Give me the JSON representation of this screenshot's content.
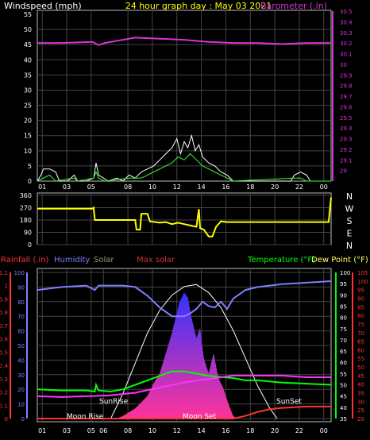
{
  "header": {
    "left_label": "Windspeed (mph)",
    "center_label": "24 hour graph day : May 03 2021",
    "right_label": "Barometer (.in)"
  },
  "bottom_header": {
    "rainfall_label": "Rainfall (.in)",
    "humidity_label": "Humidity",
    "solar_label": "Solar",
    "max_solar_label": "Max solar",
    "temperature_label": "Temperature (°F)",
    "dewpoint_label": "Dew Point (°F)"
  },
  "annotations": {
    "moon_rise": "Moon Rise",
    "moon_set": "Moon Set",
    "sun_rise": "SunRise",
    "sun_set": "SunSet"
  },
  "colors": {
    "barometer": "#d633d6",
    "wind_gust": "#ffffff",
    "wind_speed": "#33ff33",
    "direction": "#ffff00",
    "humidity": "#7f7fff",
    "solar_fill_top": "#3333ff",
    "solar_fill_bottom": "#ff3399",
    "max_solar": "#ffffff",
    "temperature": "#00ff00",
    "dewpoint": "#ff33ff",
    "rain": "#ff3333",
    "temp_axis": "#00ff00",
    "dew_axis": "#ff3333",
    "rain_axis": "#ff3333",
    "hum_axis": "#7f7fff",
    "grid": "#444444",
    "label_yellow": "#ffff00"
  },
  "chart_data": [
    {
      "type": "line",
      "name": "wind_barometer",
      "x_ticks": [
        "01",
        "03",
        "05",
        "08",
        "10",
        "12",
        "14",
        "16",
        "18",
        "20",
        "22",
        "00"
      ],
      "left_ticks": [
        "55",
        "50",
        "45",
        "40",
        "35",
        "30",
        "25",
        "20",
        "15",
        "10",
        "5",
        "0"
      ],
      "ylim_left": [
        0,
        55
      ],
      "right_ticks": [
        "30.5",
        "30.4",
        "30.3",
        "30.2",
        "30.1",
        "30",
        "29.9",
        "29.8",
        "29.7",
        "29.6",
        "29.5",
        "29.4",
        "29.3",
        "29.2",
        "29.1",
        "29"
      ],
      "ylim_right": [
        28.9,
        30.5
      ],
      "barometer_points": [
        [
          0,
          30.2
        ],
        [
          2,
          30.2
        ],
        [
          4.5,
          30.21
        ],
        [
          5,
          30.18
        ],
        [
          5.5,
          30.2
        ],
        [
          8,
          30.25
        ],
        [
          10,
          30.24
        ],
        [
          12,
          30.23
        ],
        [
          14,
          30.21
        ],
        [
          16,
          30.2
        ],
        [
          18,
          30.2
        ],
        [
          20,
          30.19
        ],
        [
          22,
          30.2
        ],
        [
          24,
          30.2
        ]
      ],
      "gust_points": [
        [
          0,
          0
        ],
        [
          0.3,
          2
        ],
        [
          0.5,
          4
        ],
        [
          1,
          4
        ],
        [
          1.5,
          3
        ],
        [
          1.8,
          0
        ],
        [
          2.5,
          0
        ],
        [
          3,
          2
        ],
        [
          3.3,
          0
        ],
        [
          4,
          0
        ],
        [
          4.6,
          1
        ],
        [
          4.8,
          6
        ],
        [
          5,
          2
        ],
        [
          5.4,
          1
        ],
        [
          5.8,
          0
        ],
        [
          6.5,
          1
        ],
        [
          7,
          0
        ],
        [
          7.5,
          2
        ],
        [
          8,
          1
        ],
        [
          8.5,
          3
        ],
        [
          9,
          4
        ],
        [
          9.5,
          5
        ],
        [
          10,
          7
        ],
        [
          10.5,
          9
        ],
        [
          11,
          11
        ],
        [
          11.4,
          14
        ],
        [
          11.7,
          9
        ],
        [
          12,
          13
        ],
        [
          12.3,
          11
        ],
        [
          12.6,
          15
        ],
        [
          12.9,
          10
        ],
        [
          13.2,
          12
        ],
        [
          13.5,
          8
        ],
        [
          14,
          6
        ],
        [
          14.5,
          5
        ],
        [
          15,
          3
        ],
        [
          15.5,
          2
        ],
        [
          16,
          0
        ],
        [
          20.7,
          0
        ],
        [
          21,
          2
        ],
        [
          21.5,
          3
        ],
        [
          22,
          2
        ],
        [
          22.3,
          0
        ],
        [
          24,
          0
        ]
      ],
      "speed_points": [
        [
          0,
          0
        ],
        [
          0.5,
          1
        ],
        [
          1,
          2
        ],
        [
          1.5,
          0
        ],
        [
          3,
          1
        ],
        [
          3.3,
          0
        ],
        [
          4.6,
          1
        ],
        [
          4.8,
          3
        ],
        [
          5,
          1
        ],
        [
          5.5,
          0
        ],
        [
          7.5,
          1
        ],
        [
          8.5,
          1
        ],
        [
          9,
          2
        ],
        [
          9.5,
          3
        ],
        [
          10,
          4
        ],
        [
          10.5,
          5
        ],
        [
          11,
          6
        ],
        [
          11.5,
          8
        ],
        [
          12,
          7
        ],
        [
          12.5,
          9
        ],
        [
          13,
          7
        ],
        [
          13.5,
          5
        ],
        [
          14,
          4
        ],
        [
          14.5,
          3
        ],
        [
          15,
          2
        ],
        [
          15.5,
          1
        ],
        [
          16,
          0
        ],
        [
          21,
          1
        ],
        [
          21.5,
          1
        ],
        [
          22,
          0
        ],
        [
          24,
          0
        ]
      ]
    },
    {
      "type": "line",
      "name": "wind_direction",
      "left_ticks": [
        "360",
        "270",
        "180",
        "90",
        "0"
      ],
      "ylim": [
        0,
        360
      ],
      "direction_letters": [
        "N",
        "W",
        "S",
        "E",
        "N"
      ],
      "points": [
        [
          0,
          263
        ],
        [
          4.5,
          263
        ],
        [
          4.6,
          270
        ],
        [
          4.7,
          180
        ],
        [
          5,
          180
        ],
        [
          8,
          180
        ],
        [
          8.1,
          110
        ],
        [
          8.4,
          110
        ],
        [
          8.5,
          225
        ],
        [
          9,
          225
        ],
        [
          9.2,
          170
        ],
        [
          10,
          160
        ],
        [
          10.5,
          165
        ],
        [
          11,
          150
        ],
        [
          11.5,
          160
        ],
        [
          12,
          150
        ],
        [
          12.5,
          140
        ],
        [
          13,
          130
        ],
        [
          13.2,
          260
        ],
        [
          13.3,
          120
        ],
        [
          13.6,
          110
        ],
        [
          14,
          60
        ],
        [
          14.3,
          60
        ],
        [
          14.6,
          130
        ],
        [
          15,
          170
        ],
        [
          15.5,
          165
        ],
        [
          16,
          165
        ],
        [
          23.8,
          165
        ],
        [
          24,
          345
        ]
      ]
    },
    {
      "type": "area",
      "name": "weather_combo",
      "x_ticks": [
        "01",
        "03",
        "05",
        "06",
        "08",
        "10",
        "12",
        "14",
        "16",
        "18",
        "20",
        "22",
        "00"
      ],
      "rain_ticks": [
        "1.1",
        "1",
        "0.9",
        "0.8",
        "0.7",
        "0.6",
        "0.5",
        "0.4",
        "0.3",
        "0.2",
        "0.1",
        "0"
      ],
      "hum_ticks": [
        "100",
        "90",
        "80",
        "70",
        "60",
        "50",
        "40",
        "30",
        "20",
        "10",
        "0"
      ],
      "temp_ticks": [
        "100",
        "95",
        "90",
        "85",
        "80",
        "75",
        "70",
        "65",
        "60",
        "55",
        "50",
        "45",
        "40",
        "35"
      ],
      "dew_ticks": [
        "105",
        "100",
        "95",
        "90",
        "85",
        "80",
        "75",
        "70",
        "65",
        "60",
        "55",
        "50",
        "45",
        "40",
        "35",
        "30",
        "25",
        "20"
      ],
      "humidity_points": [
        [
          0,
          88
        ],
        [
          2,
          90
        ],
        [
          4,
          91
        ],
        [
          4.7,
          88
        ],
        [
          5,
          91
        ],
        [
          6,
          91
        ],
        [
          7,
          91
        ],
        [
          8,
          90
        ],
        [
          9,
          84
        ],
        [
          10,
          76
        ],
        [
          11,
          70
        ],
        [
          12,
          70
        ],
        [
          12.5,
          72
        ],
        [
          13,
          75
        ],
        [
          13.5,
          80
        ],
        [
          14,
          77
        ],
        [
          14.5,
          76
        ],
        [
          15,
          80
        ],
        [
          15.5,
          75
        ],
        [
          16,
          82
        ],
        [
          17,
          88
        ],
        [
          18,
          90
        ],
        [
          20,
          92
        ],
        [
          22,
          93
        ],
        [
          24,
          94
        ]
      ],
      "solar_points": [
        [
          6.5,
          0
        ],
        [
          7,
          5
        ],
        [
          8,
          20
        ],
        [
          9,
          45
        ],
        [
          9.5,
          70
        ],
        [
          10,
          90
        ],
        [
          10.5,
          130
        ],
        [
          11,
          170
        ],
        [
          11.3,
          200
        ],
        [
          11.6,
          230
        ],
        [
          12,
          250
        ],
        [
          12.3,
          240
        ],
        [
          12.6,
          200
        ],
        [
          13,
          160
        ],
        [
          13.3,
          180
        ],
        [
          13.6,
          120
        ],
        [
          14,
          90
        ],
        [
          14.4,
          130
        ],
        [
          14.8,
          80
        ],
        [
          15.2,
          60
        ],
        [
          15.6,
          30
        ],
        [
          16,
          5
        ],
        [
          16.3,
          0
        ]
      ],
      "max_solar_points": [
        [
          6,
          0
        ],
        [
          7,
          50
        ],
        [
          8,
          110
        ],
        [
          9,
          170
        ],
        [
          10,
          215
        ],
        [
          11,
          245
        ],
        [
          12,
          262
        ],
        [
          13,
          266
        ],
        [
          14,
          250
        ],
        [
          15,
          220
        ],
        [
          16,
          175
        ],
        [
          17,
          120
        ],
        [
          18,
          65
        ],
        [
          19,
          20
        ],
        [
          19.6,
          0
        ]
      ],
      "solar_max": 290,
      "temperature_points": [
        [
          0,
          48
        ],
        [
          2,
          47.5
        ],
        [
          4,
          47.5
        ],
        [
          4.7,
          47
        ],
        [
          4.8,
          50
        ],
        [
          5,
          47.5
        ],
        [
          6,
          47
        ],
        [
          7,
          48
        ],
        [
          8,
          50
        ],
        [
          9,
          52
        ],
        [
          10,
          54
        ],
        [
          11,
          56
        ],
        [
          12,
          56
        ],
        [
          13,
          55
        ],
        [
          14,
          54
        ],
        [
          15,
          53.5
        ],
        [
          16,
          53
        ],
        [
          17,
          52
        ],
        [
          18,
          52
        ],
        [
          20,
          51
        ],
        [
          22,
          50.5
        ],
        [
          24,
          50
        ]
      ],
      "dewpoint_points": [
        [
          0,
          33
        ],
        [
          2,
          32.5
        ],
        [
          4,
          33
        ],
        [
          6,
          33.5
        ],
        [
          8,
          35
        ],
        [
          10,
          38
        ],
        [
          12,
          41
        ],
        [
          14,
          43
        ],
        [
          16,
          45
        ],
        [
          18,
          45
        ],
        [
          20,
          45
        ],
        [
          22,
          44
        ],
        [
          24,
          44
        ]
      ],
      "rain_points": [
        [
          0,
          0
        ],
        [
          16,
          0
        ],
        [
          17,
          0.02
        ],
        [
          18,
          0.05
        ],
        [
          19,
          0.07
        ],
        [
          20,
          0.08
        ],
        [
          22,
          0.09
        ],
        [
          24,
          0.09
        ]
      ]
    }
  ]
}
